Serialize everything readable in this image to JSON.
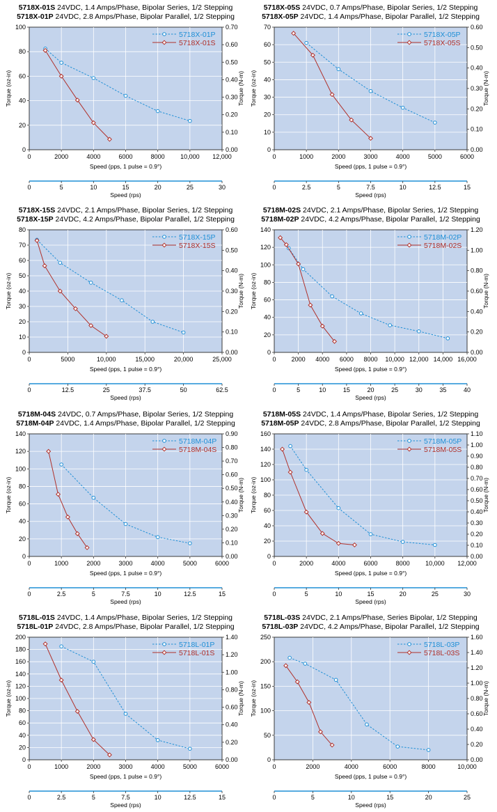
{
  "charts": [
    {
      "title_line1": {
        "model": "5718X-01S",
        "desc": " 24VDC, 1.4 Amps/Phase, Bipolar Series, 1/2 Stepping"
      },
      "title_line2": {
        "model": "5718X-01P",
        "desc": " 24VDC, 2.8 Amps/Phase, Bipolar Parallel, 1/2 Stepping"
      },
      "y_left_label": "Torque (oz-in)",
      "y_right_label": "Torque (N-m)",
      "x_label": "Speed (pps, 1 pulse = 0.9°)",
      "x2_label": "Speed (rps)",
      "x_ticks": [
        "0",
        "2000",
        "4000",
        "6000",
        "8000",
        "10,000",
        "12,000"
      ],
      "y_ticks": [
        "0",
        "20",
        "40",
        "60",
        "80",
        "100"
      ],
      "y2_ticks": [
        "0.00",
        "0.10",
        "0.20",
        "0.30",
        "0.40",
        "0.50",
        "0.60",
        "0.70"
      ],
      "x2_ticks": [
        "0",
        "5",
        "10",
        "15",
        "20",
        "25",
        "30"
      ],
      "xmax": 12000,
      "ymax": 100,
      "x2max": 30,
      "series": [
        {
          "name": "5718X-01P",
          "color": "#1f8fd6",
          "style": "dashed",
          "marker": "circle",
          "x": [
            1000,
            2000,
            4000,
            6000,
            8000,
            10000
          ],
          "y": [
            82.5,
            71,
            58.5,
            44,
            31.5,
            23.5
          ]
        },
        {
          "name": "5718X-01S",
          "color": "#b0302a",
          "style": "solid",
          "marker": "diamond",
          "x": [
            1000,
            2000,
            3000,
            4000,
            5000
          ],
          "y": [
            81,
            60,
            40.5,
            22,
            8.5
          ]
        }
      ]
    },
    {
      "title_line1": {
        "model": "5718X-05S",
        "desc": " 24VDC, 0.7 Amps/Phase, Bipolar Series, 1/2 Stepping"
      },
      "title_line2": {
        "model": "5718X-05P",
        "desc": " 24VDC, 1.4 Amps/Phase, Bipolar Parallel, 1/2 Stepping"
      },
      "y_left_label": "Torque (oz-in)",
      "y_right_label": "Torque (N-m)",
      "x_label": "Speed (pps, 1 pulse = 0.9°)",
      "x2_label": "Speed (rps)",
      "x_ticks": [
        "0",
        "1000",
        "2000",
        "3000",
        "4000",
        "5000",
        "6000"
      ],
      "y_ticks": [
        "0",
        "10",
        "20",
        "30",
        "40",
        "50",
        "60",
        "70"
      ],
      "y2_ticks": [
        "0.00",
        "0.10",
        "0.20",
        "0.30",
        "0.40",
        "0.50",
        "0.60"
      ],
      "x2_ticks": [
        "0",
        "2.5",
        "5",
        "7.5",
        "10",
        "12.5",
        "15"
      ],
      "xmax": 6000,
      "ymax": 70,
      "x2max": 15,
      "series": [
        {
          "name": "5718X-05P",
          "color": "#1f8fd6",
          "style": "dashed",
          "marker": "circle",
          "x": [
            1000,
            2000,
            3000,
            4000,
            5000
          ],
          "y": [
            61,
            46,
            33.5,
            24,
            15.5
          ]
        },
        {
          "name": "5718X-05S",
          "color": "#b0302a",
          "style": "solid",
          "marker": "diamond",
          "x": [
            600,
            1200,
            1800,
            2400,
            3000
          ],
          "y": [
            66.5,
            54,
            31.5,
            17,
            6.5
          ]
        }
      ]
    },
    {
      "title_line1": {
        "model": "5718X-15S",
        "desc": " 24VDC, 2.1 Amps/Phase, Bipolar Series, 1/2 Stepping"
      },
      "title_line2": {
        "model": "5718X-15P",
        "desc": " 24VDC, 4.2 Amps/Phase, Bipolar Parallel, 1/2 Stepping"
      },
      "y_left_label": "Torque (oz-in)",
      "y_right_label": "Torque (N-m)",
      "x_label": "Speed (pps, 1 pulse = 0.9°)",
      "x2_label": "Speed (rps)",
      "x_ticks": [
        "0",
        "5000",
        "10,000",
        "15,000",
        "20,000",
        "25,000"
      ],
      "y_ticks": [
        "0",
        "10",
        "20",
        "30",
        "40",
        "50",
        "60",
        "70",
        "80"
      ],
      "y2_ticks": [
        "0.00",
        "0.10",
        "0.20",
        "0.30",
        "0.40",
        "0.50",
        "0.60"
      ],
      "x2_ticks": [
        "0",
        "12.5",
        "25",
        "37.5",
        "50",
        "62.5"
      ],
      "xmax": 25000,
      "ymax": 80,
      "x2max": 62.5,
      "series": [
        {
          "name": "5718X-15P",
          "color": "#1f8fd6",
          "style": "dashed",
          "marker": "circle",
          "x": [
            1000,
            4000,
            8000,
            12000,
            16000,
            20000
          ],
          "y": [
            73.5,
            58.5,
            45.5,
            34,
            20,
            13
          ]
        },
        {
          "name": "5718X-15S",
          "color": "#b0302a",
          "style": "solid",
          "marker": "diamond",
          "x": [
            1000,
            2000,
            4000,
            6000,
            8000,
            10000
          ],
          "y": [
            73,
            56.5,
            40,
            28.5,
            17.5,
            10.5
          ]
        }
      ]
    },
    {
      "title_line1": {
        "model": "5718M-02S",
        "desc": " 24VDC, 2.1 Amps/Phase, Bipolar Series, 1/2 Stepping"
      },
      "title_line2": {
        "model": "5718M-02P",
        "desc": " 24VDC, 4.2 Amps/Phase, Bipolar Parallel, 1/2 Stepping"
      },
      "y_left_label": "Torque (oz-in)",
      "y_right_label": "Torque (N-m)",
      "x_label": "Speed (pps, 1 pulse = 0.9°)",
      "x2_label": "Speed (rps)",
      "x_ticks": [
        "0",
        "2000",
        "4000",
        "6000",
        "8000",
        "10,000",
        "12,000",
        "14,000",
        "16,000"
      ],
      "y_ticks": [
        "0",
        "20",
        "40",
        "60",
        "80",
        "100",
        "120",
        "140"
      ],
      "y2_ticks": [
        "0.00",
        "0.20",
        "0.40",
        "0.60",
        "0.80",
        "1.00",
        "1.20"
      ],
      "x2_ticks": [
        "0",
        "5",
        "10",
        "15",
        "20",
        "25",
        "30",
        "35",
        "40"
      ],
      "xmax": 16000,
      "ymax": 140,
      "x2max": 40,
      "series": [
        {
          "name": "5718M-02P",
          "color": "#1f8fd6",
          "style": "dashed",
          "marker": "circle",
          "x": [
            1200,
            2400,
            4800,
            7200,
            9600,
            12000,
            14400
          ],
          "y": [
            119,
            95,
            64,
            44.5,
            31,
            24,
            16
          ]
        },
        {
          "name": "5718M-02S",
          "color": "#b0302a",
          "style": "solid",
          "marker": "diamond",
          "x": [
            500,
            1000,
            2000,
            3000,
            4000,
            5000
          ],
          "y": [
            131,
            123,
            101,
            54,
            30,
            12.5
          ]
        }
      ]
    },
    {
      "title_line1": {
        "model": "5718M-04S",
        "desc": " 24VDC, 0.7 Amps/Phase, Bipolar Series, 1/2 Stepping"
      },
      "title_line2": {
        "model": "5718M-04P",
        "desc": " 24VDC, 1.4 Amps/Phase, Bipolar Parallel, 1/2 Stepping"
      },
      "y_left_label": "Torque (oz-in)",
      "y_right_label": "Torque (N-m)",
      "x_label": "Speed (pps, 1 pulse = 0.9°)",
      "x2_label": "Speed (rps)",
      "x_ticks": [
        "0",
        "1000",
        "2000",
        "3000",
        "4000",
        "5000",
        "6000"
      ],
      "y_ticks": [
        "0",
        "20",
        "40",
        "60",
        "80",
        "100",
        "120",
        "140"
      ],
      "y2_ticks": [
        "0.00",
        "0.10",
        "0.20",
        "0.30",
        "0.40",
        "0.50",
        "0.60",
        "0.70",
        "0.80",
        "0.90"
      ],
      "x2_ticks": [
        "0",
        "2.5",
        "5",
        "7.5",
        "10",
        "12.5",
        "15"
      ],
      "xmax": 6000,
      "ymax": 140,
      "x2max": 15,
      "series": [
        {
          "name": "5718M-04P",
          "color": "#1f8fd6",
          "style": "dashed",
          "marker": "circle",
          "x": [
            1000,
            2000,
            3000,
            4000,
            5000
          ],
          "y": [
            105,
            67,
            37,
            22,
            15
          ]
        },
        {
          "name": "5718M-04S",
          "color": "#b0302a",
          "style": "solid",
          "marker": "diamond",
          "x": [
            600,
            900,
            1200,
            1500,
            1800
          ],
          "y": [
            120,
            71,
            45,
            26,
            10
          ]
        }
      ]
    },
    {
      "title_line1": {
        "model": "5718M-05S",
        "desc": " 24VDC, 1.4 Amps/Phase, Bipolar Series, 1/2 Stepping"
      },
      "title_line2": {
        "model": "5718M-05P",
        "desc": " 24VDC, 2.8 Amps/Phase, Bipolar Parallel, 1/2 Stepping"
      },
      "y_left_label": "Torque (oz-in)",
      "y_right_label": "Torque (N-m)",
      "x_label": "Speed (pps, 1 pulse = 0.9°)",
      "x2_label": "Speed (rps)",
      "x_ticks": [
        "0",
        "2000",
        "4000",
        "6000",
        "8000",
        "10,000",
        "12,000"
      ],
      "y_ticks": [
        "0",
        "20",
        "40",
        "60",
        "80",
        "100",
        "120",
        "140",
        "160"
      ],
      "y2_ticks": [
        "0.00",
        "0.10",
        "0.20",
        "0.30",
        "0.40",
        "0.50",
        "0.60",
        "0.70",
        "0.80",
        "0.90",
        "1.00",
        "1.10"
      ],
      "x2_ticks": [
        "0",
        "5",
        "10",
        "15",
        "20",
        "25",
        "30"
      ],
      "xmax": 12000,
      "ymax": 160,
      "x2max": 30,
      "series": [
        {
          "name": "5718M-05P",
          "color": "#1f8fd6",
          "style": "dashed",
          "marker": "circle",
          "x": [
            1000,
            2000,
            4000,
            6000,
            8000,
            10000
          ],
          "y": [
            144,
            113,
            63,
            29,
            19,
            15
          ]
        },
        {
          "name": "5718M-05S",
          "color": "#b0302a",
          "style": "solid",
          "marker": "diamond",
          "x": [
            500,
            1000,
            2000,
            3000,
            4000,
            5000
          ],
          "y": [
            140,
            110,
            58,
            30,
            17,
            15
          ]
        }
      ]
    },
    {
      "title_line1": {
        "model": "5718L-01S",
        "desc": " 24VDC, 1.4 Amps/Phase, Bipolar Series, 1/2 Stepping"
      },
      "title_line2": {
        "model": "5718L-01P",
        "desc": " 24VDC, 2.8 Amps/Phase, Bipolar Parallel, 1/2 Stepping"
      },
      "y_left_label": "Torque (oz-in)",
      "y_right_label": "Torque (N-m)",
      "x_label": "Speed (pps, 1 pulse = 0.9°)",
      "x2_label": "Speed (rps)",
      "x_ticks": [
        "0",
        "1000",
        "2000",
        "3000",
        "4000",
        "5000",
        "6000"
      ],
      "y_ticks": [
        "0",
        "20",
        "40",
        "60",
        "80",
        "100",
        "120",
        "140",
        "160",
        "180",
        "200"
      ],
      "y2_ticks": [
        "0.00",
        "0.20",
        "0.40",
        "0.60",
        "0.80",
        "1.00",
        "1.20",
        "1.40"
      ],
      "x2_ticks": [
        "0",
        "2.5",
        "5",
        "7.5",
        "10",
        "12.5",
        "15"
      ],
      "xmax": 6000,
      "ymax": 200,
      "x2max": 15,
      "series": [
        {
          "name": "5718L-01P",
          "color": "#1f8fd6",
          "style": "dashed",
          "marker": "circle",
          "x": [
            1000,
            2000,
            3000,
            4000,
            5000
          ],
          "y": [
            185,
            160,
            75,
            32,
            18
          ]
        },
        {
          "name": "5718L-01S",
          "color": "#b0302a",
          "style": "solid",
          "marker": "diamond",
          "x": [
            500,
            1000,
            1500,
            2000,
            2500
          ],
          "y": [
            189,
            130,
            79,
            33,
            8
          ]
        }
      ]
    },
    {
      "title_line1": {
        "model": "5718L-03S",
        "desc": " 24VDC, 2.1 Amps/Phase, Series Bipolar, 1/2 Stepping"
      },
      "title_line2": {
        "model": "5718L-03P",
        "desc": " 24VDC, 4.2 Amps/Phase, Bipolar Parallel, 1/2 Stepping"
      },
      "y_left_label": "Torque (oz-in)",
      "y_right_label": "Torque (N-m)",
      "x_label": "Speed (pps, 1 pulse = 0.9°)",
      "x2_label": "Speed (rps)",
      "x_ticks": [
        "0",
        "2000",
        "4000",
        "6000",
        "8000",
        "10,000"
      ],
      "y_ticks": [
        "0",
        "50",
        "100",
        "150",
        "200",
        "250"
      ],
      "y2_ticks": [
        "0.00",
        "0.20",
        "0.40",
        "0.60",
        "0.80",
        "1.00",
        "1.20",
        "1.40",
        "1.60"
      ],
      "x2_ticks": [
        "0",
        "5",
        "10",
        "15",
        "20",
        "25"
      ],
      "xmax": 10000,
      "ymax": 250,
      "x2max": 25,
      "series": [
        {
          "name": "5718L-03P",
          "color": "#1f8fd6",
          "style": "dashed",
          "marker": "circle",
          "x": [
            800,
            1600,
            3200,
            4800,
            6400,
            8000
          ],
          "y": [
            208,
            196,
            163,
            72,
            27,
            20
          ]
        },
        {
          "name": "5718L-03S",
          "color": "#b0302a",
          "style": "solid",
          "marker": "diamond",
          "x": [
            600,
            1200,
            1800,
            2400,
            3000
          ],
          "y": [
            192,
            159,
            117,
            57,
            30
          ]
        }
      ]
    }
  ]
}
